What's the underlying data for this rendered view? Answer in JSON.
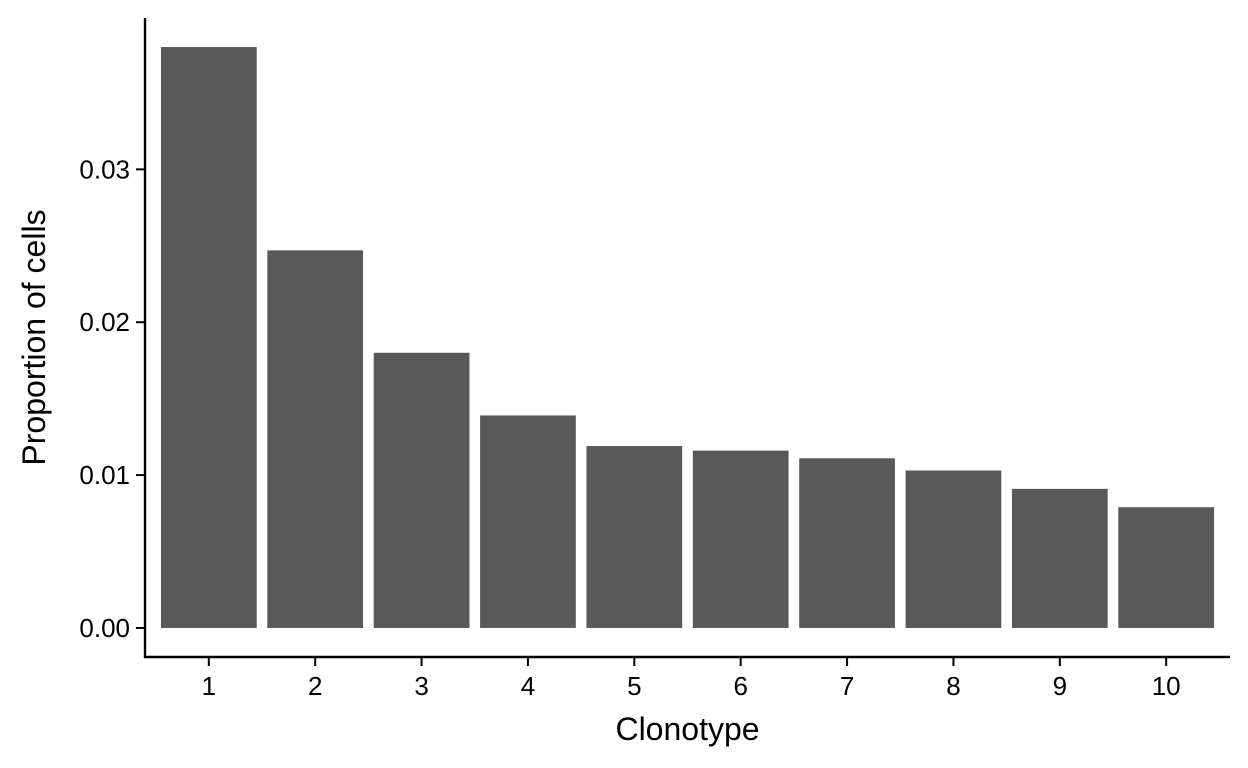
{
  "chart_data": {
    "type": "bar",
    "title": "",
    "xlabel": "Clonotype",
    "ylabel": "Proportion of cells",
    "categories": [
      "1",
      "2",
      "3",
      "4",
      "5",
      "6",
      "7",
      "8",
      "9",
      "10"
    ],
    "values": [
      0.038,
      0.0247,
      0.018,
      0.0139,
      0.0119,
      0.0116,
      0.0111,
      0.0103,
      0.0091,
      0.0079
    ],
    "ylim": [
      -0.0019,
      0.0399
    ],
    "yticks": [
      0.0,
      0.01,
      0.02,
      0.03
    ],
    "ytick_labels": [
      "0.00",
      "0.01",
      "0.02",
      "0.03"
    ],
    "grid": false,
    "legend": "none",
    "colors": {
      "bar": "#595959",
      "axis": "#000000",
      "background": "#ffffff"
    }
  }
}
